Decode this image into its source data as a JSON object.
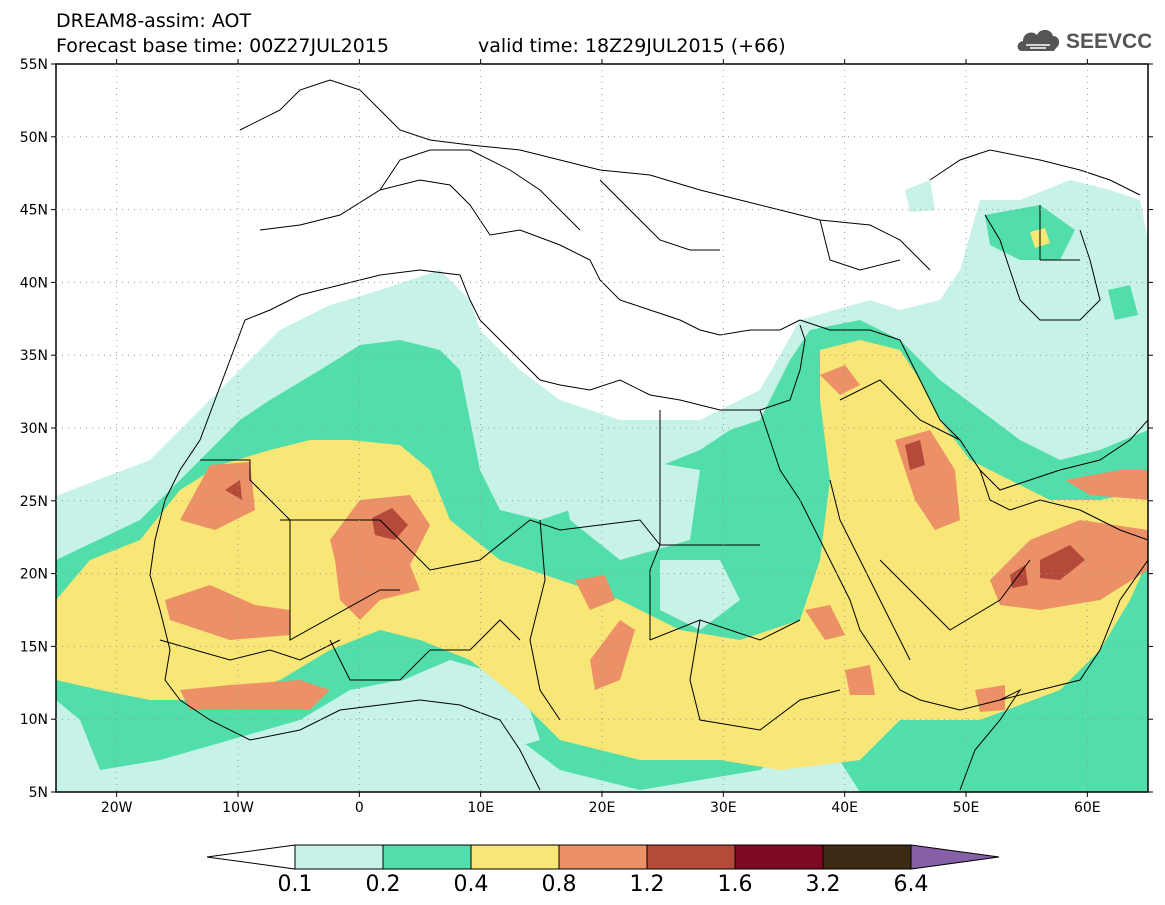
{
  "header": {
    "line1": "DREAM8-assim: AOT",
    "line2": "Forecast base time: 00Z27JUL2015",
    "valid": "valid time: 18Z29JUL2015 (+66)",
    "logo_text": "SEEVCCC"
  },
  "map": {
    "lon_range": [
      -25,
      65
    ],
    "lat_range": [
      5,
      55
    ],
    "lat_ticks": [
      {
        "lat": 55,
        "label": "55N"
      },
      {
        "lat": 50,
        "label": "50N"
      },
      {
        "lat": 45,
        "label": "45N"
      },
      {
        "lat": 40,
        "label": "40N"
      },
      {
        "lat": 35,
        "label": "35N"
      },
      {
        "lat": 30,
        "label": "30N"
      },
      {
        "lat": 25,
        "label": "25N"
      },
      {
        "lat": 20,
        "label": "20N"
      },
      {
        "lat": 15,
        "label": "15N"
      },
      {
        "lat": 10,
        "label": "10N"
      },
      {
        "lat": 5,
        "label": "5N"
      }
    ],
    "lon_ticks": [
      {
        "lon": -20,
        "label": "20W"
      },
      {
        "lon": -10,
        "label": "10W"
      },
      {
        "lon": 0,
        "label": "0"
      },
      {
        "lon": 10,
        "label": "10E"
      },
      {
        "lon": 20,
        "label": "20E"
      },
      {
        "lon": 30,
        "label": "30E"
      },
      {
        "lon": 40,
        "label": "40E"
      },
      {
        "lon": 50,
        "label": "50E"
      },
      {
        "lon": 60,
        "label": "60E"
      }
    ],
    "grid": true
  },
  "colorbar": {
    "colors": [
      "#ffffff",
      "#c7f2e8",
      "#51deaa",
      "#f8e676",
      "#eb9067",
      "#b5493a",
      "#7e0a24",
      "#3c2a14",
      "#8660a7"
    ],
    "labels": [
      "0.1",
      "0.2",
      "0.4",
      "0.8",
      "1.2",
      "1.6",
      "3.2",
      "6.4"
    ]
  },
  "colors": {
    "c1": "#c7f2e8",
    "c2": "#51deaa",
    "c3": "#f8e676",
    "c4": "#eb9067",
    "c5": "#b5493a",
    "border": "#000000"
  }
}
